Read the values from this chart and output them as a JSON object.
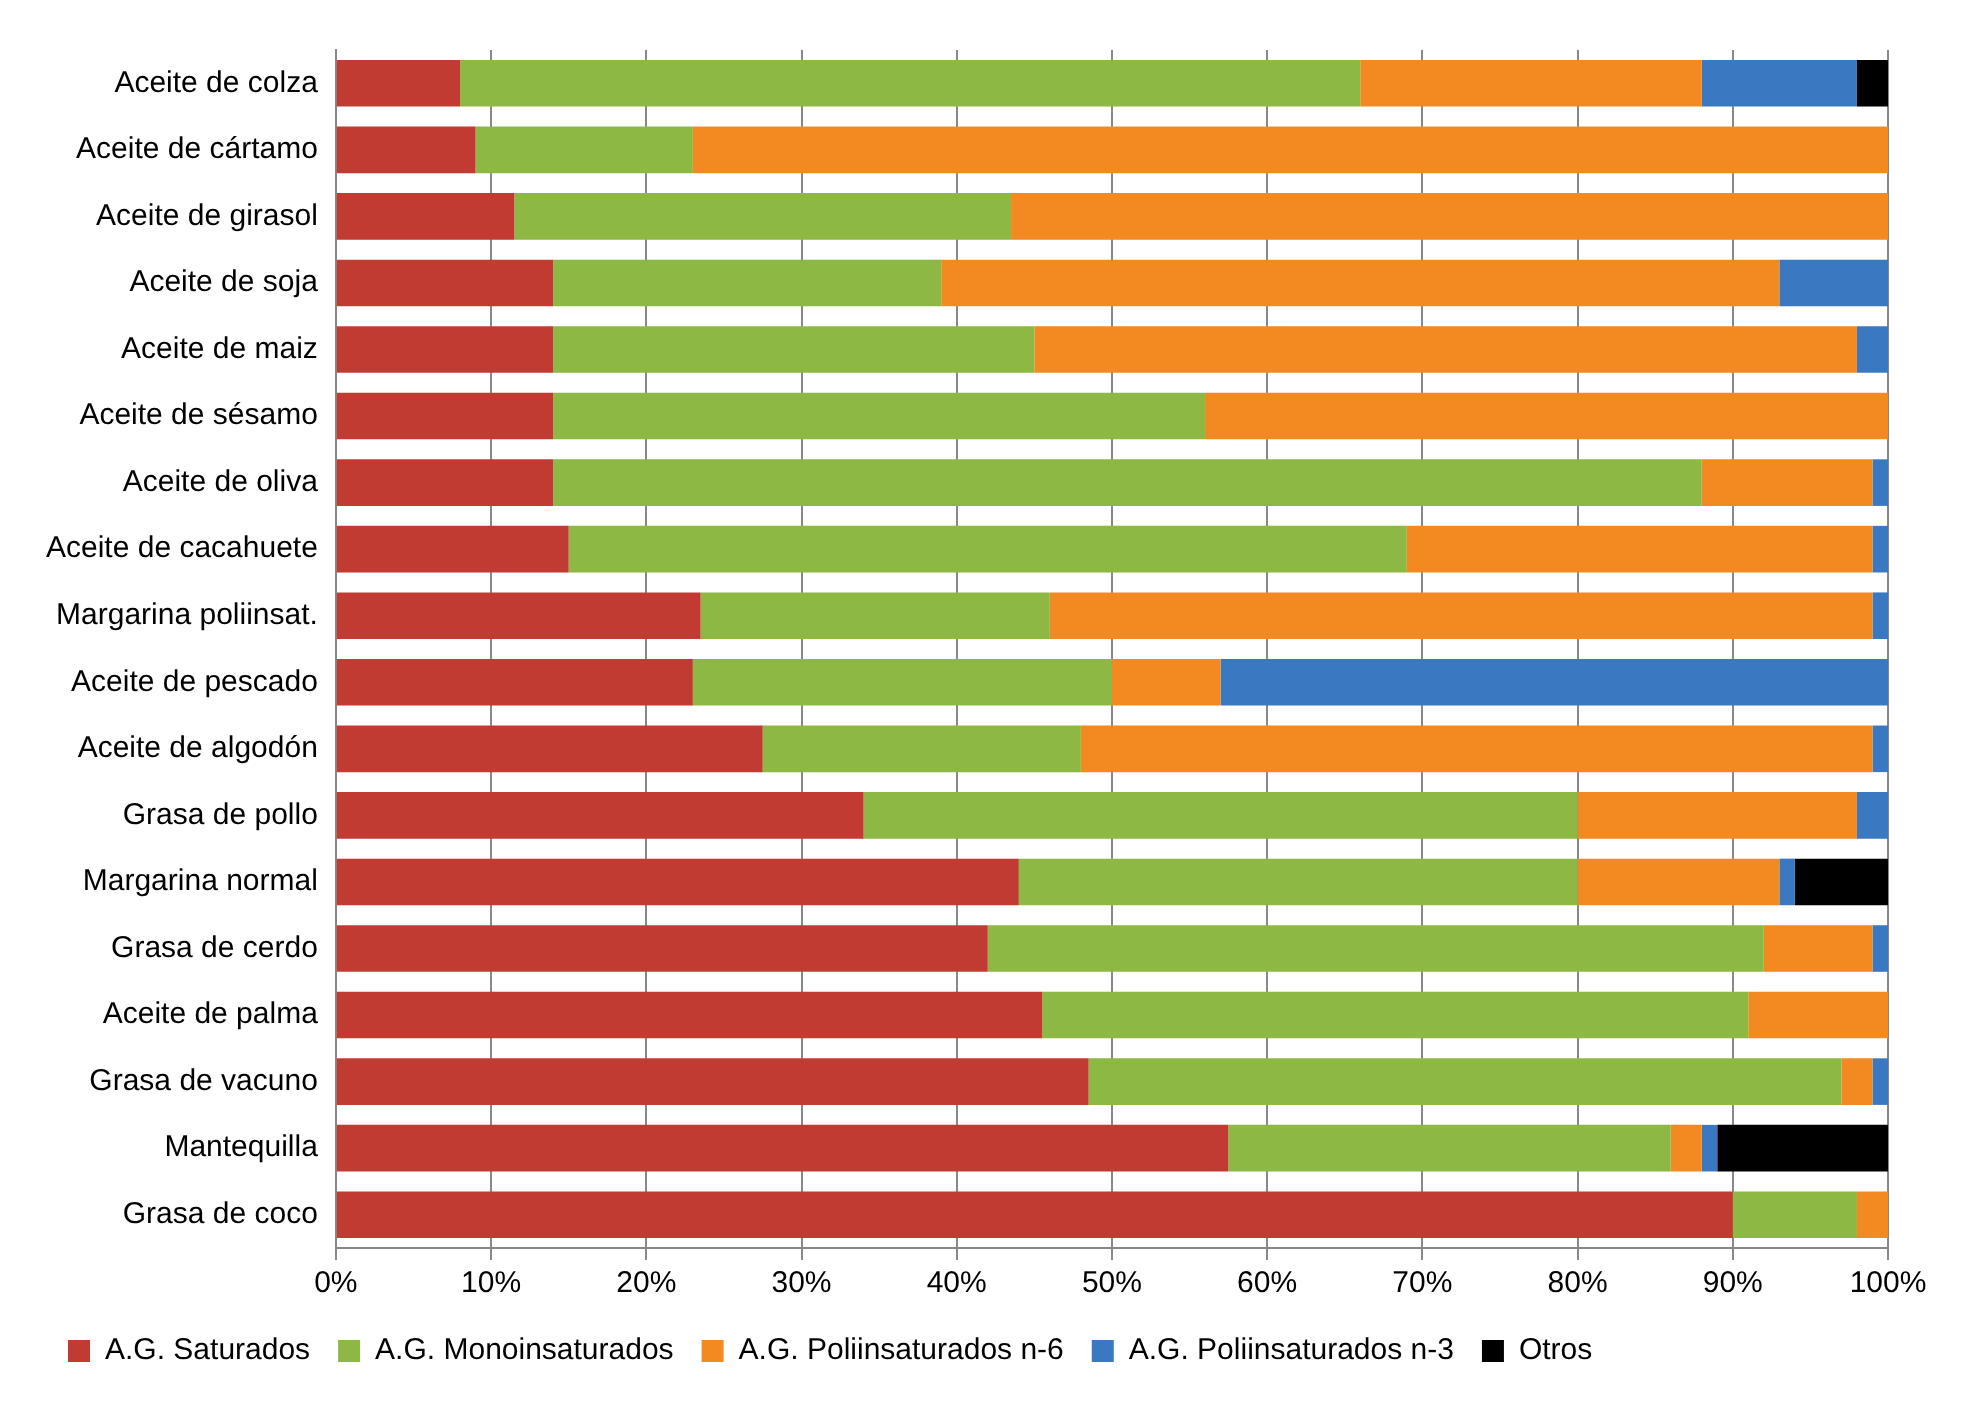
{
  "chart_data": {
    "type": "bar",
    "orientation": "horizontal",
    "stacked": true,
    "categories": [
      "Aceite de colza",
      "Aceite de cártamo",
      "Aceite de girasol",
      "Aceite de soja",
      "Aceite de maiz",
      "Aceite de sésamo",
      "Aceite de oliva",
      "Aceite de cacahuete",
      "Margarina poliinsat.",
      "Aceite de pescado",
      "Aceite de algodón",
      "Grasa de pollo",
      "Margarina normal",
      "Grasa de cerdo",
      "Aceite de palma",
      "Grasa de vacuno",
      "Mantequilla",
      "Grasa de coco"
    ],
    "series": [
      {
        "name": "A.G. Saturados",
        "color": "#c23b33",
        "values": [
          8,
          9,
          11.5,
          14,
          14,
          14,
          14,
          15,
          23.5,
          23,
          27.5,
          34,
          44,
          42,
          45.5,
          48.5,
          57.5,
          90
        ]
      },
      {
        "name": "A.G. Monoinsaturados",
        "color": "#8db843",
        "values": [
          58,
          14,
          32,
          25,
          31,
          42,
          74,
          54,
          22.5,
          27,
          20.5,
          46,
          36,
          50,
          45.5,
          48.5,
          28.5,
          8
        ]
      },
      {
        "name": "A.G. Poliinsaturados n-6",
        "color": "#f28a21",
        "values": [
          22,
          77,
          56.5,
          54,
          53,
          44,
          11,
          30,
          53,
          7,
          51,
          18,
          13,
          7,
          9,
          2,
          2,
          2
        ]
      },
      {
        "name": "A.G. Poliinsaturados n-3",
        "color": "#3a78c2",
        "values": [
          10,
          0,
          0,
          7,
          2,
          0,
          1,
          1,
          1,
          43,
          1,
          2,
          1,
          1,
          0,
          1,
          1,
          0
        ]
      },
      {
        "name": "Otros",
        "color": "#000000",
        "values": [
          2,
          0,
          0,
          0,
          0,
          0,
          0,
          0,
          0,
          0,
          0,
          0,
          6,
          0,
          0,
          0,
          11,
          0
        ]
      }
    ],
    "xlim": [
      0,
      100
    ],
    "xticks": [
      {
        "value": 0,
        "label": "0%"
      },
      {
        "value": 10,
        "label": "10%"
      },
      {
        "value": 20,
        "label": "20%"
      },
      {
        "value": 30,
        "label": "30%"
      },
      {
        "value": 40,
        "label": "40%"
      },
      {
        "value": 50,
        "label": "50%"
      },
      {
        "value": 60,
        "label": "60%"
      },
      {
        "value": 70,
        "label": "70%"
      },
      {
        "value": 80,
        "label": "80%"
      },
      {
        "value": 90,
        "label": "90%"
      },
      {
        "value": 100,
        "label": "100%"
      }
    ],
    "grid": "x",
    "legend": "bottom"
  }
}
